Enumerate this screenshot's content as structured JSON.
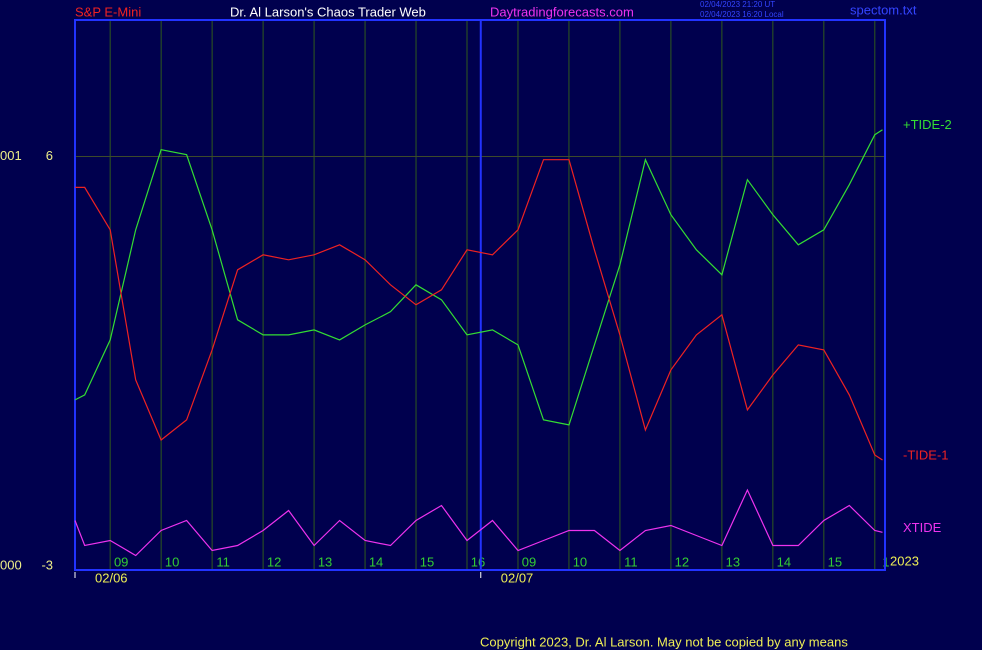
{
  "chart_data": {
    "type": "line",
    "title": "Dr. Al Larson's Chaos Trader Web",
    "instrument": "S&P E-Mini",
    "site": "Daytradingforecasts.com",
    "timestamps": [
      "02/04/2023 21:20 UT",
      "02/04/2023 16:20 Local"
    ],
    "file": "spectom.txt",
    "copyright": "Copyright 2023, Dr. Al Larson. May not be copied by any means",
    "year": "2023",
    "dates": [
      "02/06",
      "02/07"
    ],
    "day_breaks": [
      16.27
    ],
    "x": [
      8.31,
      8.5,
      9,
      9.5,
      10,
      10.5,
      11,
      11.5,
      12,
      12.5,
      13,
      13.5,
      14,
      14.5,
      15,
      15.5,
      16,
      16.5,
      17,
      17.5,
      18,
      18.5,
      19,
      19.5,
      20,
      20.5,
      21,
      21.5,
      22,
      22.5,
      23,
      23.5,
      24,
      24.15
    ],
    "series": [
      {
        "name": "+TIDE-2",
        "color": "#33dd33",
        "values": [
          0.65,
          0.76,
          1.97,
          4.39,
          6.15,
          6.04,
          4.39,
          2.41,
          2.08,
          2.08,
          2.19,
          1.97,
          2.3,
          2.59,
          3.18,
          2.85,
          2.08,
          2.19,
          1.86,
          0.21,
          0.1,
          1.86,
          3.62,
          5.93,
          4.72,
          3.95,
          3.4,
          5.49,
          4.72,
          4.06,
          4.39,
          5.38,
          6.48,
          6.59
        ]
      },
      {
        "name": "-TIDE-1",
        "color": "#ee2222",
        "values": [
          5.32,
          5.32,
          4.39,
          1.09,
          -0.23,
          0.21,
          1.75,
          3.51,
          3.84,
          3.73,
          3.84,
          4.06,
          3.73,
          3.18,
          2.74,
          3.07,
          3.95,
          3.84,
          4.39,
          5.93,
          5.93,
          3.95,
          2.08,
          -0.01,
          1.31,
          2.08,
          2.52,
          0.43,
          1.2,
          1.86,
          1.75,
          0.76,
          -0.56,
          -0.67
        ]
      },
      {
        "name": "XTIDE",
        "color": "#ee33ee",
        "values": [
          -2.0,
          -2.55,
          -2.44,
          -2.77,
          -2.22,
          -2.0,
          -2.66,
          -2.55,
          -2.22,
          -1.78,
          -2.55,
          -2.0,
          -2.44,
          -2.55,
          -2.0,
          -1.67,
          -2.44,
          -2.0,
          -2.66,
          -2.44,
          -2.22,
          -2.22,
          -2.66,
          -2.22,
          -2.11,
          -2.33,
          -2.55,
          -1.33,
          -2.55,
          -2.55,
          -2.0,
          -1.67,
          -2.22,
          -2.26
        ]
      }
    ],
    "xlim": [
      8.31,
      24.2
    ],
    "xticks": [
      {
        "value": 9,
        "label": "09"
      },
      10,
      11,
      12,
      13,
      14,
      15,
      16,
      {
        "value": 17,
        "label": "09"
      },
      {
        "value": 18,
        "label": "10"
      },
      {
        "value": 19,
        "label": "11"
      },
      {
        "value": 20,
        "label": "12"
      },
      {
        "value": 21,
        "label": "13"
      },
      {
        "value": 22,
        "label": "14"
      },
      {
        "value": 23,
        "label": "15"
      },
      {
        "value": 24,
        "label": "1"
      }
    ],
    "ylim": [
      -3,
      9
    ],
    "yticks": [
      -3,
      6
    ],
    "ytick_prefixes": [
      "000",
      "001"
    ],
    "grid": true
  }
}
